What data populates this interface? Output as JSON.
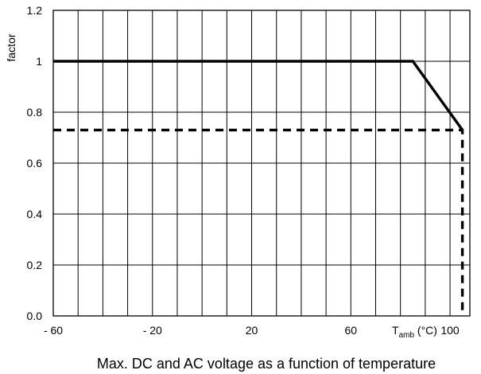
{
  "chart_data": {
    "type": "line",
    "title": "Max. DC and AC voltage as a function of temperature",
    "xlabel": "",
    "ylabel": "factor",
    "x_axis_label": {
      "base": "T",
      "sub": "amb",
      "unit": " (°C)"
    },
    "xlim": [
      -60,
      108
    ],
    "ylim": [
      0,
      1.2
    ],
    "x_ticks": [
      {
        "value": -60,
        "label": "- 60"
      },
      {
        "value": -20,
        "label": "- 20"
      },
      {
        "value": 20,
        "label": "20"
      },
      {
        "value": 60,
        "label": "60"
      },
      {
        "value": 100,
        "label": "100"
      }
    ],
    "y_ticks": [
      {
        "value": 0,
        "label": "0.0"
      },
      {
        "value": 0.2,
        "label": "0.2"
      },
      {
        "value": 0.4,
        "label": "0.4"
      },
      {
        "value": 0.6,
        "label": "0.6"
      },
      {
        "value": 0.8,
        "label": "0.8"
      },
      {
        "value": 1.0,
        "label": "1"
      },
      {
        "value": 1.2,
        "label": "1.2"
      }
    ],
    "x_grid_step": 10,
    "y_grid_step": 0.2,
    "grid": true,
    "series": [
      {
        "style": "solid",
        "color": "#000000",
        "points": [
          [
            -60,
            1.0
          ],
          [
            85,
            1.0
          ],
          [
            105,
            0.73
          ]
        ]
      },
      {
        "style": "dashed",
        "color": "#000000",
        "points": [
          [
            -60,
            0.73
          ],
          [
            105,
            0.73
          ],
          [
            105,
            0.0
          ]
        ]
      }
    ]
  }
}
